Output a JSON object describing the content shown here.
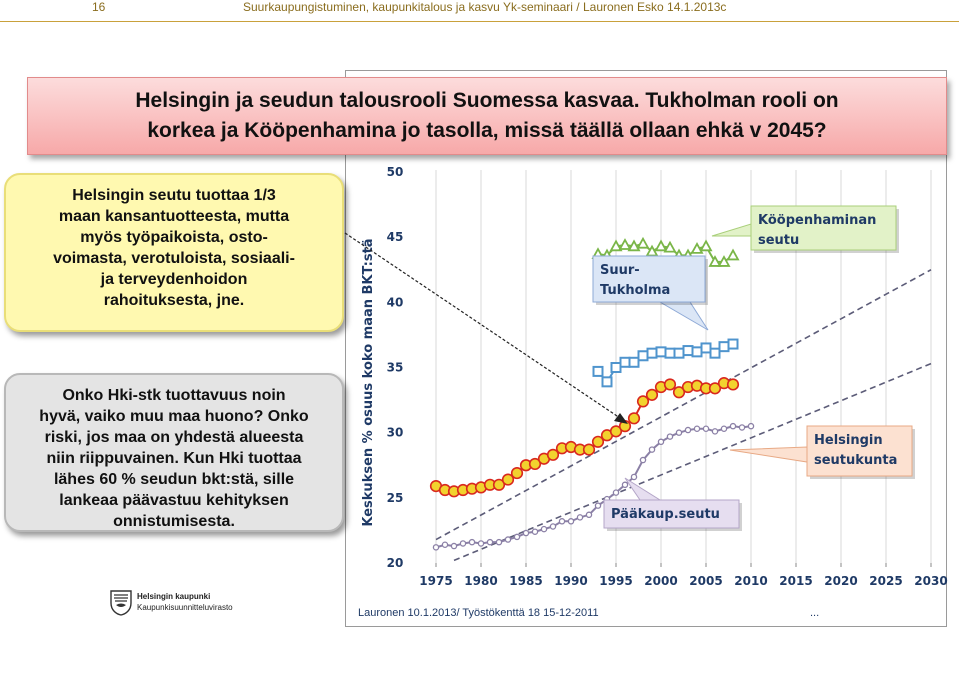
{
  "header": {
    "page_number": "16",
    "title": "Suurkaupungistuminen, kaupunkitalous ja kasvu Yk-seminaari / Lauronen Esko 14.1.2013c"
  },
  "slide": {
    "title_line1": "Helsingin ja seudun talousrooli Suomessa kasvaa. Tukholman rooli on",
    "title_line2": "korkea ja Kööpenhamina jo tasolla, missä täällä ollaan ehkä v 2045?"
  },
  "bubbles": {
    "yellow": [
      "Helsingin seutu tuottaa 1/3",
      "maan kansantuotteesta, mutta",
      "myös työpaikoista, osto-",
      "voimasta, verotuloista, sosiaali-",
      "ja  terveydenhoidon",
      "rahoituksesta, jne."
    ],
    "grey": [
      "Onko Hki-stk tuottavuus noin",
      "hyvä, vaiko muu maa huono? Onko",
      "riski, jos maa on yhdestä alueesta",
      "niin riippuvainen. Kun Hki tuottaa",
      "lähes 60 % seudun bkt:stä, sille",
      "lankeaa päävastuu kehityksen",
      "onnistumisesta."
    ]
  },
  "logo": {
    "line1": "Helsingin kaupunki",
    "line2": "Kaupunkisuunnitteluvirasto"
  },
  "colors": {
    "copenhagen": "#7ab648",
    "stockholm": "#4f94cd",
    "helsinki_region": "#f2d22e",
    "helsinki_region_edge": "#d9281e",
    "capital_city": "#8b80a6",
    "trend": "#5c5c78",
    "axis_text": "#1f3a66"
  },
  "chart_data": {
    "type": "line",
    "ylabel": "Keskuksen % osuus koko maan BKT:stä",
    "xlim": [
      1971,
      2031
    ],
    "ylim": [
      20,
      50
    ],
    "x_ticks": [
      1975,
      1980,
      1985,
      1990,
      1995,
      2000,
      2005,
      2010,
      2015,
      2020,
      2025,
      2030
    ],
    "y_ticks": [
      20,
      25,
      30,
      35,
      40,
      45,
      50
    ],
    "grid": "vertical",
    "series": [
      {
        "key": "copenhagen",
        "marker": "triangle",
        "x": [
          1993,
          1994,
          1995,
          1996,
          1997,
          1998,
          1999,
          2000,
          2001,
          2002,
          2003,
          2004,
          2005,
          2006,
          2007,
          2008
        ],
        "y": [
          43.7,
          43.6,
          44.3,
          44.4,
          44.3,
          44.5,
          43.9,
          44.3,
          44.2,
          43.6,
          43.6,
          44.1,
          44.3,
          43.1,
          43.1,
          43.6
        ]
      },
      {
        "key": "stockholm",
        "marker": "square",
        "x": [
          1993,
          1994,
          1995,
          1996,
          1997,
          1998,
          1999,
          2000,
          2001,
          2002,
          2003,
          2004,
          2005,
          2006,
          2007,
          2008
        ],
        "y": [
          34.7,
          33.9,
          35.0,
          35.4,
          35.4,
          35.9,
          36.1,
          36.2,
          36.1,
          36.1,
          36.3,
          36.2,
          36.5,
          36.1,
          36.6,
          36.8
        ]
      },
      {
        "key": "helsinki_region",
        "marker": "circle",
        "x": [
          1975,
          1976,
          1977,
          1978,
          1979,
          1980,
          1981,
          1982,
          1983,
          1984,
          1985,
          1986,
          1987,
          1988,
          1989,
          1990,
          1991,
          1992,
          1993,
          1994,
          1995,
          1996,
          1997,
          1998,
          1999,
          2000,
          2001,
          2002,
          2003,
          2004,
          2005,
          2006,
          2007,
          2008
        ],
        "y": [
          25.9,
          25.6,
          25.5,
          25.6,
          25.7,
          25.8,
          26.0,
          26.0,
          26.4,
          26.9,
          27.5,
          27.6,
          28.0,
          28.3,
          28.8,
          28.9,
          28.7,
          28.7,
          29.3,
          29.8,
          30.1,
          30.5,
          31.1,
          32.4,
          32.9,
          33.5,
          33.7,
          33.1,
          33.5,
          33.6,
          33.4,
          33.4,
          33.8,
          33.7
        ]
      },
      {
        "key": "capital_city",
        "marker": "dot",
        "x": [
          1975,
          1976,
          1977,
          1978,
          1979,
          1980,
          1981,
          1982,
          1983,
          1984,
          1985,
          1986,
          1987,
          1988,
          1989,
          1990,
          1991,
          1992,
          1993,
          1994,
          1995,
          1996,
          1997,
          1998,
          1999,
          2000,
          2001,
          2002,
          2003,
          2004,
          2005,
          2006,
          2007,
          2008,
          2009,
          2010
        ],
        "y": [
          21.2,
          21.4,
          21.3,
          21.5,
          21.6,
          21.5,
          21.6,
          21.6,
          21.8,
          22.0,
          22.3,
          22.4,
          22.6,
          22.8,
          23.2,
          23.2,
          23.5,
          23.7,
          24.4,
          24.9,
          25.4,
          26.0,
          26.6,
          27.9,
          28.7,
          29.3,
          29.7,
          30.0,
          30.2,
          30.3,
          30.3,
          30.1,
          30.3,
          30.5,
          30.4,
          30.5
        ]
      },
      {
        "key": "trend_region",
        "style": "dashed",
        "x": [
          1975,
          2030
        ],
        "y": [
          21.8,
          42.5
        ]
      },
      {
        "key": "trend_city",
        "style": "dashed",
        "x": [
          1977,
          2030
        ],
        "y": [
          20.2,
          35.3
        ]
      }
    ],
    "callouts": [
      {
        "key": "copenhagen",
        "lines": [
          "Kööpenhaminan",
          "seutu"
        ]
      },
      {
        "key": "stockholm",
        "lines": [
          "Suur-",
          "Tukholma"
        ]
      },
      {
        "key": "helsinki_region",
        "lines": [
          "Helsingin",
          "seutukunta"
        ]
      },
      {
        "key": "capital_city",
        "lines": [
          "Pääkaup.seutu"
        ]
      }
    ],
    "footer_left": "Lauronen 10.1.2013/ Työstökenttä 18  15-12-2011",
    "footer_right": "..."
  }
}
